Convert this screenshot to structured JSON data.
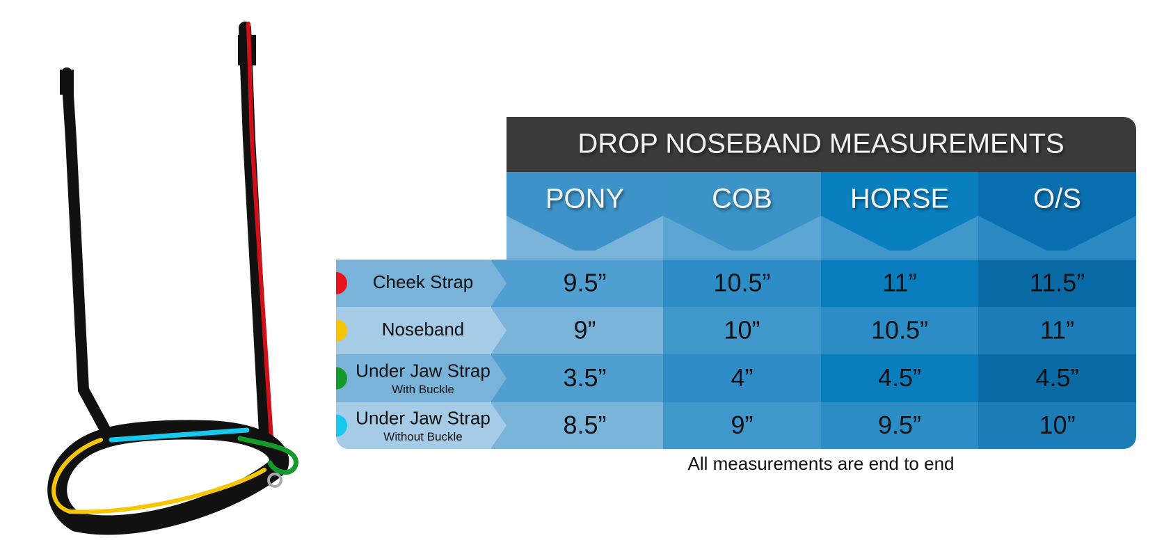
{
  "header": {
    "title": "DROP NOSEBAND MEASUREMENTS"
  },
  "columns": [
    "PONY",
    "COB",
    "HORSE",
    "O/S"
  ],
  "rows": [
    {
      "label": "Cheek Strap",
      "color": "#e8141c",
      "values": [
        "9.5”",
        "10.5”",
        "11”",
        "11.5”"
      ]
    },
    {
      "label": "Noseband",
      "color": "#f7c600",
      "values": [
        "9”",
        "10”",
        "10.5”",
        "11”"
      ]
    },
    {
      "label": "Under Jaw Strap",
      "sublabel": "With Buckle",
      "color": "#139a2b",
      "values": [
        "3.5”",
        "4”",
        "4.5”",
        "4.5”"
      ]
    },
    {
      "label": "Under Jaw Strap",
      "sublabel": "Without Buckle",
      "color": "#17c8ef",
      "values": [
        "8.5”",
        "9”",
        "9.5”",
        "10”"
      ]
    }
  ],
  "footnote": "All measurements are end to end"
}
